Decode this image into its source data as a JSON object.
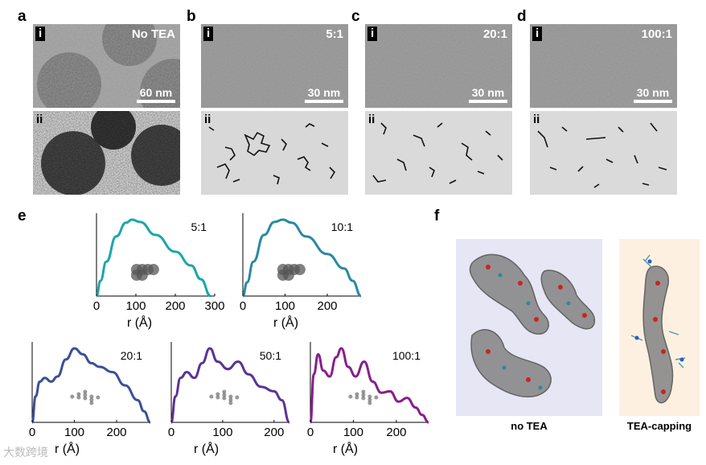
{
  "panels": {
    "a": {
      "label": "a",
      "top": "i",
      "bottom": "ii",
      "title": "No TEA",
      "scale": "60 nm"
    },
    "b": {
      "label": "b",
      "top": "i",
      "bottom": "ii",
      "title": "5:1",
      "scale": "30 nm"
    },
    "c": {
      "label": "c",
      "top": "i",
      "bottom": "ii",
      "title": "20:1",
      "scale": "30 nm"
    },
    "d": {
      "label": "d",
      "top": "i",
      "bottom": "ii",
      "title": "100:1",
      "scale": "30 nm"
    },
    "e": {
      "label": "e"
    },
    "f": {
      "label": "f",
      "left_caption": "no TEA",
      "right_caption": "TEA-capping"
    }
  },
  "watermark": "大数跨境",
  "chart_data": [
    {
      "type": "line",
      "title": "5:1",
      "xlabel": "r (Å)",
      "xlim": [
        0,
        300
      ],
      "xticks": [
        0,
        100,
        200,
        300
      ],
      "x": [
        0,
        10,
        25,
        50,
        75,
        90,
        110,
        150,
        200,
        240,
        265,
        290
      ],
      "y": [
        0.0,
        0.2,
        0.45,
        0.78,
        0.96,
        1.0,
        0.97,
        0.8,
        0.58,
        0.4,
        0.22,
        0.0
      ]
    },
    {
      "type": "line",
      "title": "10:1",
      "xlabel": "r (Å)",
      "xlim": [
        0,
        280
      ],
      "xticks": [
        0,
        100,
        200
      ],
      "x": [
        0,
        10,
        25,
        50,
        75,
        95,
        115,
        150,
        200,
        240,
        260,
        280
      ],
      "y": [
        0.0,
        0.18,
        0.45,
        0.8,
        0.97,
        1.0,
        0.96,
        0.78,
        0.55,
        0.36,
        0.2,
        0.0
      ]
    },
    {
      "type": "line",
      "title": "20:1",
      "xlabel": "r (Å)",
      "xlim": [
        0,
        280
      ],
      "xticks": [
        0,
        100,
        200
      ],
      "x": [
        0,
        8,
        18,
        30,
        45,
        60,
        80,
        100,
        120,
        140,
        160,
        190,
        220,
        250,
        265,
        280
      ],
      "y": [
        0.0,
        0.35,
        0.55,
        0.6,
        0.55,
        0.62,
        0.85,
        1.0,
        0.92,
        0.8,
        0.75,
        0.68,
        0.5,
        0.3,
        0.15,
        0.0
      ]
    },
    {
      "type": "line",
      "title": "50:1",
      "xlabel": "r (Å)",
      "xlim": [
        0,
        230
      ],
      "xticks": [
        0,
        100,
        200
      ],
      "x": [
        0,
        8,
        18,
        30,
        45,
        60,
        75,
        90,
        110,
        130,
        150,
        175,
        200,
        215,
        230
      ],
      "y": [
        0.0,
        0.35,
        0.6,
        0.68,
        0.6,
        0.8,
        1.0,
        0.82,
        0.72,
        0.82,
        0.65,
        0.48,
        0.42,
        0.3,
        0.0
      ]
    },
    {
      "type": "line",
      "title": "100:1",
      "xlabel": "r (Å)",
      "xlim": [
        0,
        275
      ],
      "xticks": [
        0,
        100,
        200
      ],
      "x": [
        0,
        8,
        18,
        30,
        45,
        60,
        72,
        88,
        105,
        125,
        145,
        165,
        185,
        205,
        225,
        245,
        260,
        275
      ],
      "y": [
        0.0,
        0.65,
        0.92,
        0.7,
        0.62,
        0.88,
        1.0,
        0.75,
        0.62,
        0.82,
        0.55,
        0.4,
        0.42,
        0.28,
        0.33,
        0.2,
        0.1,
        0.0
      ]
    }
  ]
}
